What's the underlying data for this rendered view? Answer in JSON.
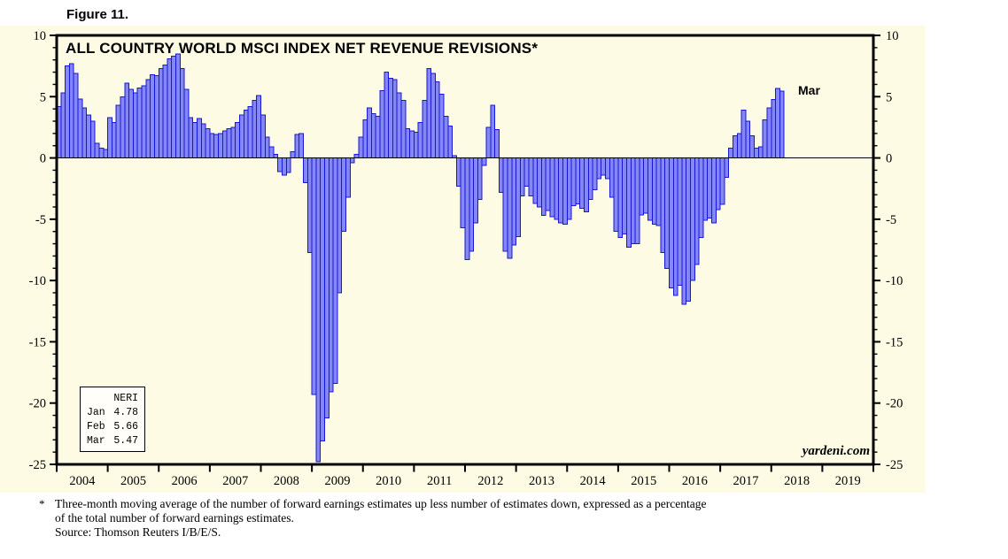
{
  "figure_label": "Figure 11.",
  "chart": {
    "title": "ALL COUNTRY WORLD MSCI INDEX NET REVENUE REVISIONS*",
    "last_point_label": "Mar",
    "watermark": "yardeni.com",
    "legend": {
      "header": "NERI",
      "rows": [
        {
          "label": "Jan",
          "value": "4.78"
        },
        {
          "label": "Feb",
          "value": "5.66"
        },
        {
          "label": "Mar",
          "value": "5.47"
        }
      ]
    }
  },
  "footnote": {
    "marker": "*",
    "line1": "Three-month moving average of the number of forward earnings estimates up less number of estimates down, expressed as a percentage",
    "line2": "of the total number of forward earnings estimates.",
    "line3": "Source: Thomson Reuters I/B/E/S."
  },
  "chart_data": {
    "type": "bar",
    "title": "ALL COUNTRY WORLD MSCI INDEX NET REVENUE REVISIONS*",
    "unit": "percent",
    "start_month": "2004-01",
    "end_month": "2018-03",
    "x_axis_years": [
      "2004",
      "2005",
      "2006",
      "2007",
      "2008",
      "2009",
      "2010",
      "2011",
      "2012",
      "2013",
      "2014",
      "2015",
      "2016",
      "2017",
      "2018",
      "2019"
    ],
    "x_range_years": [
      2004,
      2020
    ],
    "ylim": [
      -25,
      10
    ],
    "y_major_ticks": [
      10,
      5,
      0,
      -5,
      -10,
      -15,
      -20,
      -25
    ],
    "y_minor_tick_step": 1,
    "grid": false,
    "legend_position": "bottom-left",
    "series": [
      {
        "name": "NERI",
        "values": [
          4.2,
          5.3,
          7.5,
          7.7,
          6.9,
          4.8,
          4.1,
          3.5,
          3.0,
          1.2,
          0.8,
          0.7,
          3.3,
          2.9,
          4.3,
          5.0,
          6.1,
          5.6,
          5.3,
          5.7,
          5.9,
          6.4,
          6.8,
          6.7,
          7.3,
          7.6,
          8.1,
          8.3,
          8.5,
          7.3,
          5.6,
          3.3,
          2.9,
          3.2,
          2.8,
          2.4,
          2.0,
          1.9,
          2.0,
          2.2,
          2.4,
          2.5,
          2.9,
          3.5,
          3.9,
          4.2,
          4.7,
          5.1,
          3.5,
          1.7,
          0.9,
          0.3,
          -1.1,
          -1.4,
          -1.2,
          0.5,
          1.9,
          2.0,
          -2.0,
          -7.7,
          -19.3,
          -24.8,
          -23.1,
          -21.2,
          -19.1,
          -18.4,
          -11.0,
          -6.0,
          -3.2,
          -0.4,
          0.3,
          1.7,
          3.1,
          4.1,
          3.6,
          3.4,
          5.5,
          7.0,
          6.5,
          6.4,
          5.3,
          4.7,
          2.4,
          2.2,
          2.1,
          2.9,
          4.7,
          7.3,
          6.9,
          6.2,
          5.2,
          3.4,
          2.6,
          0.2,
          -2.3,
          -5.7,
          -8.3,
          -7.6,
          -5.3,
          -3.4,
          -0.6,
          2.5,
          4.3,
          2.3,
          -2.8,
          -7.6,
          -8.2,
          -7.1,
          -6.4,
          -3.1,
          -2.3,
          -3.1,
          -3.7,
          -4.0,
          -4.7,
          -4.3,
          -4.8,
          -5.0,
          -5.3,
          -5.4,
          -5.0,
          -3.9,
          -3.75,
          -4.1,
          -4.4,
          -3.4,
          -2.6,
          -1.7,
          -1.4,
          -1.7,
          -3.2,
          -6.0,
          -6.5,
          -6.2,
          -7.3,
          -7.0,
          -7.0,
          -4.65,
          -4.5,
          -5.1,
          -5.4,
          -5.5,
          -7.7,
          -9.0,
          -10.6,
          -11.2,
          -10.4,
          -11.95,
          -11.7,
          -10.0,
          -8.7,
          -6.5,
          -5.1,
          -4.9,
          -5.3,
          -4.2,
          -3.8,
          -1.6,
          0.8,
          1.8,
          2.0,
          3.9,
          3.0,
          1.8,
          0.8,
          0.9,
          3.1,
          4.1,
          4.78,
          5.66,
          5.47
        ]
      }
    ],
    "colors": {
      "bar_fill": "#8487F5",
      "bar_border": "#1717D6",
      "plot_background": "#FDFBE3",
      "frame": "#000000"
    }
  }
}
